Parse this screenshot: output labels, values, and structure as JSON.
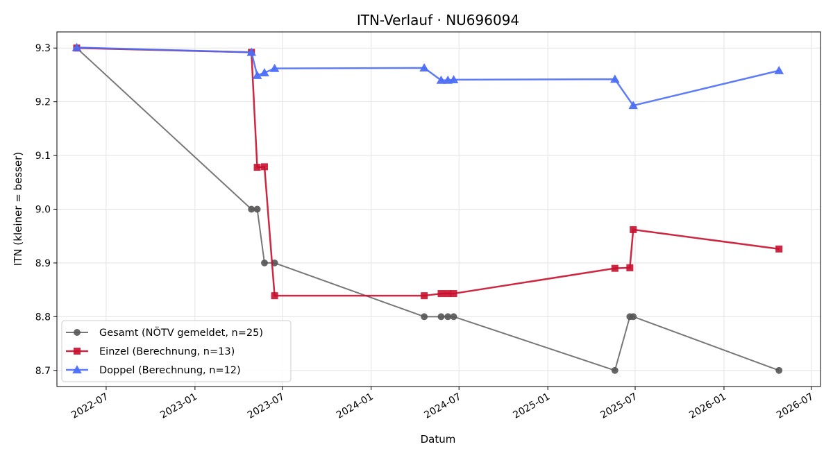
{
  "chart_data": {
    "type": "line",
    "title": "ITN-Verlauf · NU696094",
    "xlabel": "Datum",
    "ylabel": "ITN  (kleiner = besser)",
    "ylim": [
      8.67,
      9.33
    ],
    "xlim": [
      "2022-03-21",
      "2026-07-20"
    ],
    "x_ticks": [
      "2022-07",
      "2023-01",
      "2023-07",
      "2024-01",
      "2024-07",
      "2025-01",
      "2025-07",
      "2026-01",
      "2026-07"
    ],
    "y_ticks": [
      "8.7",
      "8.8",
      "8.9",
      "9.0",
      "9.1",
      "9.2",
      "9.3"
    ],
    "grid": true,
    "legend_position": "lower-left",
    "series": [
      {
        "name": "Gesamt (NÖTV gemeldet, n=25)",
        "color": "#555555",
        "marker": "circle",
        "points": [
          [
            "2022-05-01",
            9.3
          ],
          [
            "2023-04-28",
            9.0
          ],
          [
            "2023-05-10",
            9.0
          ],
          [
            "2023-05-25",
            8.9
          ],
          [
            "2023-06-15",
            8.9
          ],
          [
            "2024-04-20",
            8.8
          ],
          [
            "2024-05-25",
            8.8
          ],
          [
            "2024-06-08",
            8.8
          ],
          [
            "2024-06-20",
            8.8
          ],
          [
            "2025-05-20",
            8.7
          ],
          [
            "2025-06-20",
            8.8
          ],
          [
            "2025-06-27",
            8.8
          ],
          [
            "2026-04-25",
            8.7
          ]
        ]
      },
      {
        "name": "Einzel (Berechnung, n=13)",
        "color": "#c8102e",
        "marker": "square",
        "points": [
          [
            "2022-05-01",
            9.3
          ],
          [
            "2023-04-28",
            9.292
          ],
          [
            "2023-05-10",
            9.078
          ],
          [
            "2023-05-25",
            9.079
          ],
          [
            "2023-06-15",
            8.839
          ],
          [
            "2024-04-20",
            8.839
          ],
          [
            "2024-05-25",
            8.843
          ],
          [
            "2024-06-08",
            8.843
          ],
          [
            "2024-06-20",
            8.843
          ],
          [
            "2025-05-20",
            8.89
          ],
          [
            "2025-06-20",
            8.891
          ],
          [
            "2025-06-27",
            8.962
          ],
          [
            "2026-04-25",
            8.926
          ]
        ]
      },
      {
        "name": "Doppel (Berechnung, n=12)",
        "color": "#4c6ef5",
        "marker": "triangle",
        "points": [
          [
            "2022-05-01",
            9.301
          ],
          [
            "2023-04-28",
            9.292
          ],
          [
            "2023-05-10",
            9.249
          ],
          [
            "2023-05-25",
            9.254
          ],
          [
            "2023-06-15",
            9.262
          ],
          [
            "2024-04-20",
            9.263
          ],
          [
            "2024-05-25",
            9.24
          ],
          [
            "2024-06-08",
            9.24
          ],
          [
            "2024-06-20",
            9.241
          ],
          [
            "2025-05-20",
            9.242
          ],
          [
            "2025-06-27",
            9.193
          ],
          [
            "2026-04-25",
            9.258
          ]
        ]
      }
    ]
  }
}
